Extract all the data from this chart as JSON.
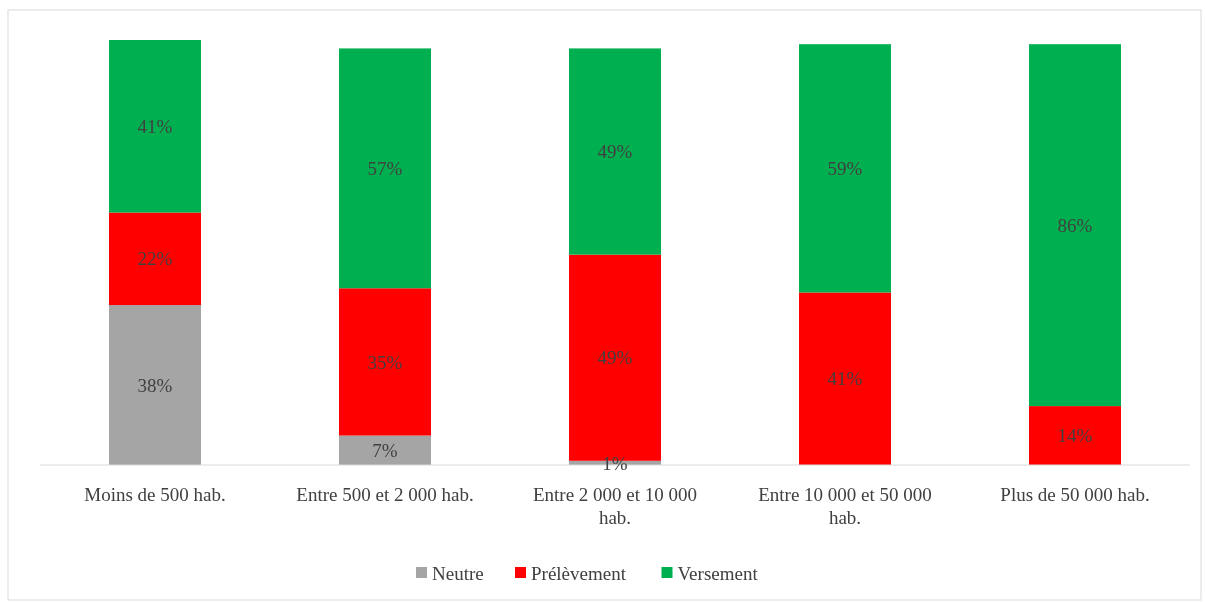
{
  "chart_data": {
    "type": "bar",
    "stacked": true,
    "legend": "bottom",
    "categories": [
      "Moins de 500 hab.",
      "Entre 500 et 2 000 hab.",
      "Entre 2 000 et 10 000 hab.",
      "Entre 10 000 et 50 000 hab.",
      "Plus de 50 000 hab."
    ],
    "series": [
      {
        "name": "Neutre",
        "color": "#a5a5a5",
        "values": [
          38,
          7,
          1,
          null,
          null
        ],
        "value_labels": [
          "38%",
          "7%",
          "1%",
          null,
          null
        ]
      },
      {
        "name": "Prélèvement",
        "color": "#ff0000",
        "values": [
          22,
          35,
          49,
          41,
          14
        ],
        "value_labels": [
          "22%",
          "35%",
          "49%",
          "41%",
          "14%"
        ]
      },
      {
        "name": "Versement",
        "color": "#00b050",
        "values": [
          41,
          57,
          49,
          59,
          86
        ],
        "value_labels": [
          "41%",
          "57%",
          "49%",
          "59%",
          "86%"
        ]
      }
    ]
  }
}
